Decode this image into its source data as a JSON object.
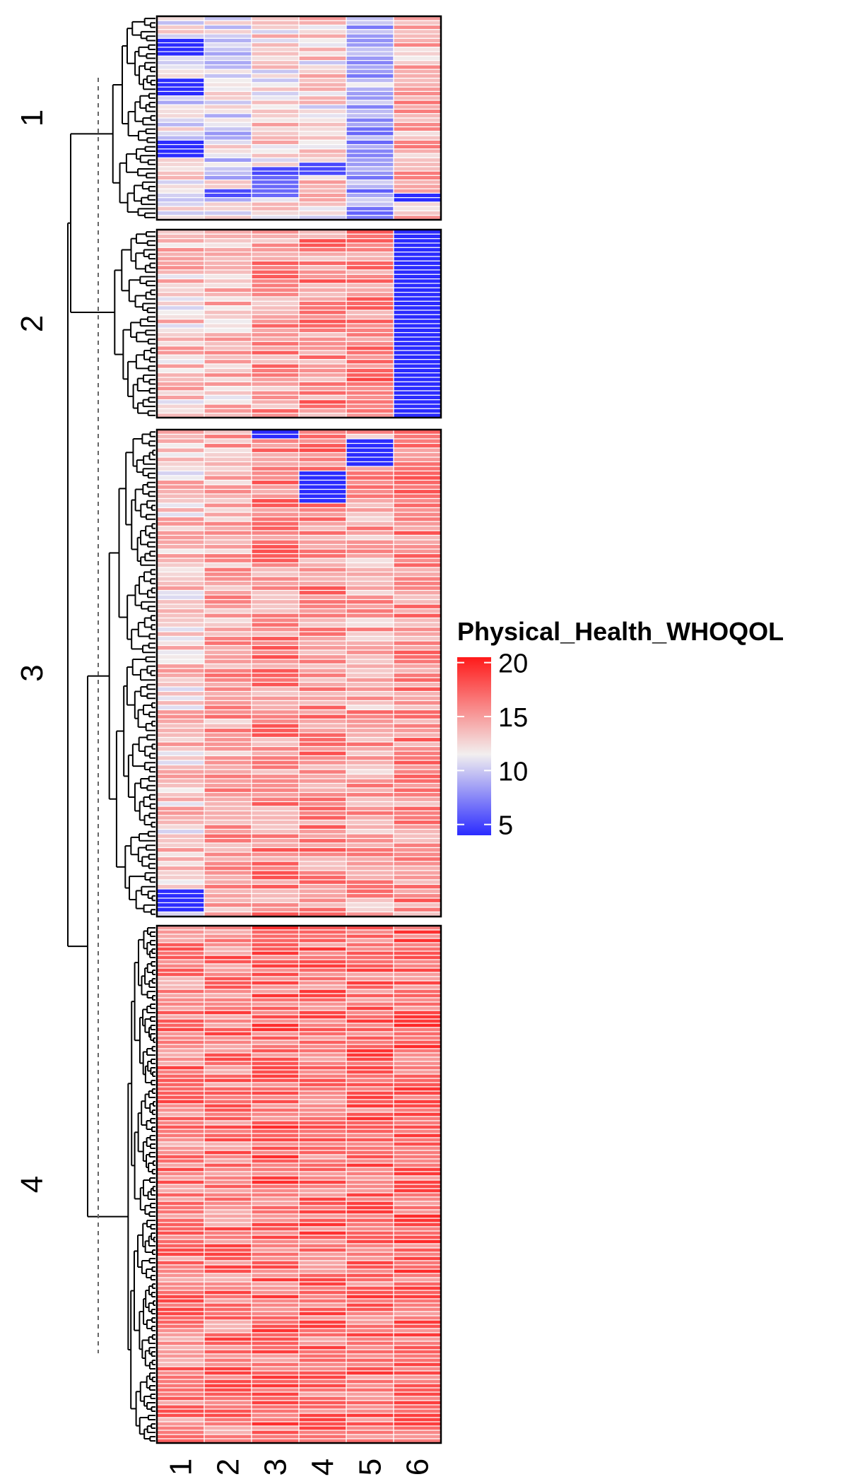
{
  "chart_data": {
    "type": "heatmap",
    "columns": [
      "1",
      "2",
      "3",
      "4",
      "5",
      "6"
    ],
    "legend": {
      "title": "Physical_Health_WHOQOL",
      "ticks": [
        "20",
        "15",
        "10",
        "5"
      ],
      "tick_values": [
        20,
        15,
        10,
        5
      ],
      "range": [
        4,
        20.5
      ],
      "colors": {
        "low": "#2b2bff",
        "mid": "#f2efef",
        "high": "#ff1a1a"
      },
      "mid_value": 11.5,
      "placement": "right"
    },
    "clusters": [
      {
        "label": "1",
        "rows": 46
      },
      {
        "label": "2",
        "rows": 42
      },
      {
        "label": "3",
        "rows": 106
      },
      {
        "label": "4",
        "rows": 122
      }
    ],
    "row_dendrogram": true,
    "cut_line": "dashed",
    "cluster_profiles": [
      {
        "means": [
          11.5,
          11.0,
          12.5,
          12.5,
          9.0,
          14.0
        ],
        "blue_blocks": [
          [
            0,
            5,
            4,
            4.5
          ],
          [
            0,
            14,
            4,
            5
          ],
          [
            0,
            28,
            4,
            5
          ],
          [
            0,
            30,
            0,
            6
          ],
          [
            2,
            34,
            5,
            6
          ],
          [
            2,
            36,
            5,
            7
          ],
          [
            3,
            33,
            3,
            6
          ],
          [
            5,
            40,
            2,
            5
          ],
          [
            1,
            39,
            2,
            6
          ]
        ]
      },
      {
        "means": [
          13.0,
          13.5,
          15.0,
          15.5,
          16.0,
          4.5
        ],
        "blue_blocks": [
          [
            5,
            0,
            42,
            4.5
          ]
        ]
      },
      {
        "means": [
          13.0,
          14.5,
          15.5,
          15.5,
          14.5,
          15.5
        ],
        "blue_blocks": [
          [
            2,
            0,
            2,
            4.5
          ],
          [
            4,
            2,
            6,
            4.5
          ],
          [
            3,
            9,
            7,
            4.5
          ],
          [
            0,
            100,
            5,
            4.5
          ]
        ]
      },
      {
        "means": [
          16.0,
          16.3,
          16.8,
          16.6,
          16.6,
          17.0
        ],
        "blue_blocks": []
      }
    ],
    "ylabel": "",
    "xlabel": ""
  }
}
